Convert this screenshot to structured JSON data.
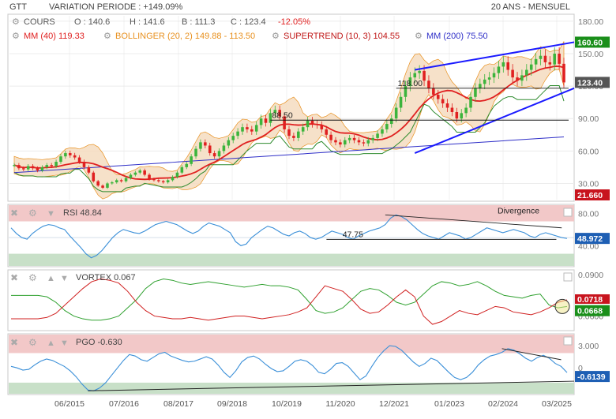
{
  "header": {
    "ticker": "GTT",
    "variation": "VARIATION PERIODE : +149.09%",
    "period": "20 ANS - MENSUEL"
  },
  "legend": {
    "cours_label": "COURS",
    "open": "O : 140.6",
    "high": "H : 141.6",
    "low": "B : 111.3",
    "close": "C : 123.4",
    "change": "-12.05%",
    "mm40": "MM (40) 119.33",
    "bollinger": "BOLLINGER (20, 2) 149.88 - 113.50",
    "supertrend": "SUPERTREND (10, 3) 104.55",
    "mm200": "MM (200) 75.50"
  },
  "colors": {
    "up": "#3cb43c",
    "down": "#e02020",
    "mm40": "#e02020",
    "bollinger": "#e8901e",
    "bollinger_fill": "#f5dcc0",
    "supertrend": "#2e8b2e",
    "mm200": "#3030c8",
    "channel": "#1a1aff",
    "rsi_line": "#3a8fd8",
    "vortex_plus": "#2ea02e",
    "vortex_minus": "#d02020",
    "overbought": "#f2c8c8",
    "oversold": "#c8e0c8",
    "frame": "#c8c8c8"
  },
  "icons": [
    "close-icon",
    "gear-icon",
    "arrow-up-icon",
    "arrow-down-icon",
    "checkbox-icon"
  ],
  "chart_data": [
    {
      "type": "candlestick",
      "name": "price",
      "x_ticks": [
        "06/2015",
        "07/2016",
        "08/2017",
        "09/2018",
        "10/2019",
        "11/2020",
        "12/2021",
        "01/2023",
        "02/2024",
        "03/2025"
      ],
      "y_ticks": [
        "180.00",
        "150.00",
        "120.00",
        "90.00",
        "60.00",
        "30.00"
      ],
      "y_range": [
        15,
        185
      ],
      "close_series": [
        47,
        44,
        43,
        46,
        44,
        42,
        45,
        47,
        46,
        50,
        55,
        58,
        56,
        54,
        50,
        45,
        40,
        32,
        28,
        26,
        30,
        31,
        33,
        32,
        35,
        38,
        40,
        42,
        38,
        34,
        33,
        32,
        31,
        33,
        36,
        40,
        45,
        48,
        55,
        62,
        68,
        65,
        58,
        55,
        60,
        65,
        70,
        74,
        78,
        82,
        80,
        78,
        84,
        90,
        86,
        95,
        98,
        92,
        80,
        74,
        72,
        78,
        82,
        88,
        85,
        84,
        80,
        75,
        70,
        68,
        66,
        70,
        72,
        70,
        68,
        67,
        70,
        72,
        76,
        80,
        85,
        90,
        100,
        110,
        120,
        128,
        132,
        134,
        125,
        118,
        112,
        108,
        104,
        100,
        96,
        90,
        95,
        100,
        110,
        118,
        122,
        126,
        128,
        132,
        138,
        142,
        135,
        128,
        125,
        130,
        135,
        140,
        145,
        148,
        142,
        140,
        150,
        140.6,
        123.4
      ],
      "annotations": [
        {
          "label": "118.00",
          "value": 118
        },
        {
          "label": "88.50",
          "value": 88.5
        }
      ],
      "right_labels": [
        {
          "label": "160.60",
          "value": 160.6
        },
        {
          "label": "123.40",
          "value": 123.4
        },
        {
          "label": "21.660",
          "value": 21.66
        }
      ]
    },
    {
      "type": "line",
      "name": "RSI",
      "title": "RSI 48.84",
      "y_ticks": [
        "80.00",
        "40.00"
      ],
      "y_range": [
        15,
        90
      ],
      "overbought": 70,
      "oversold": 30,
      "annotations": [
        {
          "label": "47.75",
          "value": 47.75
        },
        {
          "label": "Divergence"
        }
      ],
      "right_label": "48.972",
      "values": [
        62,
        55,
        50,
        48,
        55,
        60,
        64,
        66,
        65,
        62,
        60,
        52,
        45,
        38,
        30,
        25,
        28,
        34,
        42,
        50,
        56,
        60,
        58,
        56,
        55,
        58,
        62,
        66,
        68,
        70,
        68,
        66,
        62,
        58,
        55,
        58,
        64,
        68,
        66,
        64,
        60,
        56,
        45,
        40,
        42,
        50,
        55,
        60,
        64,
        62,
        58,
        54,
        52,
        56,
        58,
        55,
        50,
        48,
        50,
        54,
        58,
        56,
        54,
        50,
        48,
        52,
        55,
        58,
        60,
        62,
        66,
        74,
        78,
        76,
        72,
        66,
        60,
        55,
        52,
        50,
        48,
        52,
        56,
        54,
        52,
        48,
        50,
        54,
        58,
        62,
        60,
        58,
        56,
        58,
        60,
        58,
        56,
        52,
        50,
        54,
        56,
        54,
        52,
        50,
        48.84
      ]
    },
    {
      "type": "line",
      "name": "VORTEX",
      "title": "VORTEX 0.067",
      "y_ticks": [
        "0.0900",
        "0.0600"
      ],
      "right_labels": [
        "0.0718",
        "0.0668"
      ],
      "series": [
        {
          "name": "VI+",
          "values": [
            0.075,
            0.075,
            0.075,
            0.075,
            0.074,
            0.07,
            0.064,
            0.06,
            0.058,
            0.057,
            0.057,
            0.058,
            0.06,
            0.066,
            0.072,
            0.08,
            0.085,
            0.087,
            0.086,
            0.084,
            0.083,
            0.084,
            0.085,
            0.084,
            0.083,
            0.082,
            0.081,
            0.082,
            0.083,
            0.082,
            0.082,
            0.081,
            0.079,
            0.072,
            0.064,
            0.062,
            0.063,
            0.066,
            0.072,
            0.078,
            0.08,
            0.079,
            0.075,
            0.07,
            0.068,
            0.07,
            0.076,
            0.082,
            0.085,
            0.084,
            0.082,
            0.083,
            0.085,
            0.082,
            0.078,
            0.075,
            0.074,
            0.073,
            0.075,
            0.076,
            0.068,
            0.066,
            0.067
          ]
        },
        {
          "name": "VI-",
          "values": [
            0.058,
            0.058,
            0.058,
            0.058,
            0.059,
            0.062,
            0.068,
            0.074,
            0.08,
            0.085,
            0.087,
            0.086,
            0.084,
            0.078,
            0.07,
            0.064,
            0.06,
            0.059,
            0.058,
            0.058,
            0.059,
            0.058,
            0.057,
            0.058,
            0.059,
            0.06,
            0.06,
            0.059,
            0.058,
            0.059,
            0.06,
            0.061,
            0.063,
            0.066,
            0.074,
            0.082,
            0.08,
            0.078,
            0.072,
            0.065,
            0.062,
            0.063,
            0.068,
            0.074,
            0.079,
            0.074,
            0.06,
            0.054,
            0.056,
            0.06,
            0.064,
            0.062,
            0.061,
            0.064,
            0.067,
            0.066,
            0.063,
            0.062,
            0.061,
            0.063,
            0.066,
            0.07,
            0.0718
          ]
        }
      ]
    },
    {
      "type": "line",
      "name": "PGO",
      "title": "PGO -0.630",
      "y_ticks": [
        "3.000",
        "0"
      ],
      "y_range": [
        -3.5,
        4.5
      ],
      "overbought": 2,
      "oversold": -2,
      "right_label": "-0.6139",
      "values": [
        0.2,
        0.0,
        -0.3,
        -0.2,
        0.4,
        0.9,
        1.2,
        1.0,
        0.6,
        0.2,
        -0.4,
        -1.2,
        -2.2,
        -3.0,
        -3.1,
        -2.7,
        -2.0,
        -1.0,
        0.0,
        1.0,
        1.8,
        1.6,
        1.1,
        0.9,
        1.4,
        1.9,
        2.1,
        1.6,
        1.3,
        1.0,
        0.8,
        0.9,
        1.2,
        1.5,
        1.2,
        0.4,
        -0.6,
        -1.3,
        -0.4,
        0.8,
        1.4,
        1.6,
        1.2,
        0.5,
        -0.1,
        -0.5,
        -0.4,
        0.2,
        0.9,
        1.1,
        0.9,
        0.3,
        -0.6,
        -0.8,
        -0.2,
        0.6,
        0.7,
        0.2,
        -0.7,
        -1.6,
        -1.1,
        0.2,
        1.4,
        2.3,
        3.0,
        2.9,
        2.4,
        1.6,
        0.8,
        0.2,
        0.6,
        1.3,
        1.0,
        0.2,
        -0.6,
        -1.3,
        -1.6,
        -1.3,
        -0.6,
        0.4,
        1.1,
        1.6,
        1.8,
        2.1,
        2.6,
        2.4,
        1.9,
        1.3,
        0.9,
        1.4,
        1.7,
        1.3,
        0.6,
        0.2,
        -0.63
      ]
    }
  ]
}
